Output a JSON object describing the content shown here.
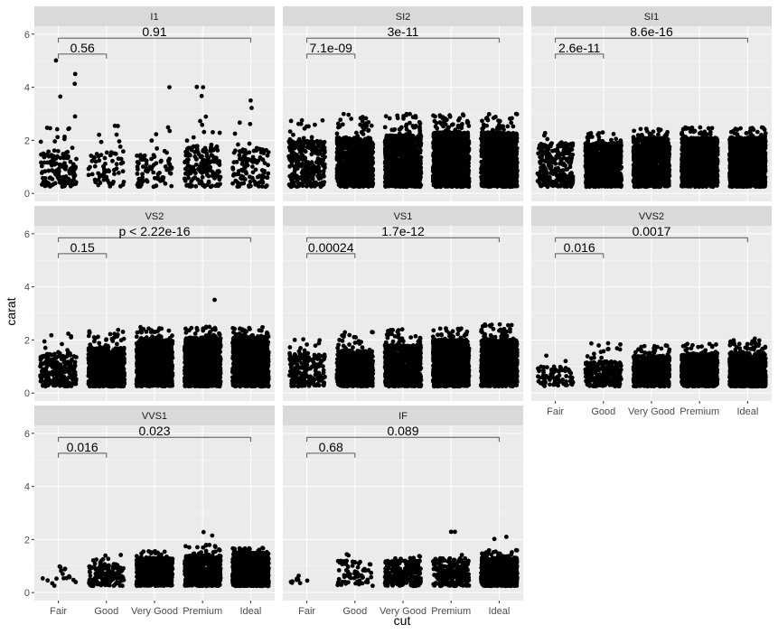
{
  "chart_data": {
    "type": "scatter",
    "subtype": "faceted-jitter-strip",
    "facet_variable": "clarity",
    "xlabel": "cut",
    "ylabel": "carat",
    "categories": [
      "Fair",
      "Good",
      "Very Good",
      "Premium",
      "Ideal"
    ],
    "ylim": [
      0,
      6
    ],
    "yticks": [
      "0",
      "2",
      "4",
      "6"
    ],
    "grid": true,
    "legend": "none",
    "colors": {
      "panel_bg": "#ebebeb",
      "strip_bg": "#d9d9d9",
      "grid": "#ffffff",
      "points": "#000000",
      "bracket": "#595959"
    },
    "panels": [
      {
        "label": "I1",
        "row": 0,
        "col": 0,
        "short_bracket": {
          "from": "Fair",
          "to": "Good",
          "y": 5.25,
          "label": "0.56"
        },
        "long_bracket": {
          "from": "Fair",
          "to": "Ideal",
          "y": 5.85,
          "label": "0.91"
        },
        "groups": [
          {
            "cat": "Fair",
            "n": 150,
            "core_max": 1.6,
            "extent": 3.0
          },
          {
            "cat": "Good",
            "n": 70,
            "core_max": 1.6,
            "extent": 2.8
          },
          {
            "cat": "Very Good",
            "n": 80,
            "core_max": 1.6,
            "extent": 2.9
          },
          {
            "cat": "Premium",
            "n": 180,
            "core_max": 1.8,
            "extent": 3.0
          },
          {
            "cat": "Ideal",
            "n": 120,
            "core_max": 1.7,
            "extent": 2.8
          }
        ],
        "outliers": [
          {
            "cat": "Fair",
            "dx": -0.05,
            "y": 5.01
          },
          {
            "cat": "Fair",
            "dx": 0.35,
            "y": 4.5
          },
          {
            "cat": "Fair",
            "dx": 0.34,
            "y": 4.13
          },
          {
            "cat": "Fair",
            "dx": 0.04,
            "y": 3.65
          },
          {
            "cat": "Very Good",
            "dx": 0.31,
            "y": 4.0
          },
          {
            "cat": "Premium",
            "dx": -0.12,
            "y": 4.01
          },
          {
            "cat": "Premium",
            "dx": 0.01,
            "y": 4.0
          },
          {
            "cat": "Premium",
            "dx": -0.02,
            "y": 3.67
          },
          {
            "cat": "Ideal",
            "dx": 0.0,
            "y": 3.5
          },
          {
            "cat": "Ideal",
            "dx": 0.02,
            "y": 3.22
          }
        ]
      },
      {
        "label": "SI2",
        "row": 0,
        "col": 1,
        "short_bracket": {
          "from": "Fair",
          "to": "Good",
          "y": 5.25,
          "label": "7.1e-09"
        },
        "long_bracket": {
          "from": "Fair",
          "to": "Ideal",
          "y": 5.85,
          "label": "3e-11"
        },
        "groups": [
          {
            "cat": "Fair",
            "n": 300,
            "core_max": 2.0,
            "extent": 3.0
          },
          {
            "cat": "Good",
            "n": 900,
            "core_max": 2.1,
            "extent": 3.0
          },
          {
            "cat": "Very Good",
            "n": 1100,
            "core_max": 2.2,
            "extent": 3.0
          },
          {
            "cat": "Premium",
            "n": 1300,
            "core_max": 2.3,
            "extent": 3.0
          },
          {
            "cat": "Ideal",
            "n": 1200,
            "core_max": 2.3,
            "extent": 3.0
          }
        ],
        "outliers": []
      },
      {
        "label": "SI1",
        "row": 0,
        "col": 2,
        "short_bracket": {
          "from": "Fair",
          "to": "Good",
          "y": 5.25,
          "label": "2.6e-11"
        },
        "long_bracket": {
          "from": "Fair",
          "to": "Ideal",
          "y": 5.85,
          "label": "8.6e-16"
        },
        "groups": [
          {
            "cat": "Fair",
            "n": 260,
            "core_max": 1.9,
            "extent": 2.3
          },
          {
            "cat": "Good",
            "n": 900,
            "core_max": 1.9,
            "extent": 2.3
          },
          {
            "cat": "Very Good",
            "n": 1100,
            "core_max": 2.1,
            "extent": 2.5
          },
          {
            "cat": "Premium",
            "n": 1300,
            "core_max": 2.1,
            "extent": 2.5
          },
          {
            "cat": "Ideal",
            "n": 1300,
            "core_max": 2.1,
            "extent": 2.5
          }
        ],
        "outliers": []
      },
      {
        "label": "VS2",
        "row": 1,
        "col": 0,
        "short_bracket": {
          "from": "Fair",
          "to": "Good",
          "y": 5.25,
          "label": "0.15"
        },
        "long_bracket": {
          "from": "Fair",
          "to": "Ideal",
          "y": 5.85,
          "label": "p < 2.22e-16"
        },
        "groups": [
          {
            "cat": "Fair",
            "n": 250,
            "core_max": 1.5,
            "extent": 2.3
          },
          {
            "cat": "Good",
            "n": 800,
            "core_max": 1.7,
            "extent": 2.4
          },
          {
            "cat": "Very Good",
            "n": 1100,
            "core_max": 2.0,
            "extent": 2.5
          },
          {
            "cat": "Premium",
            "n": 1300,
            "core_max": 2.1,
            "extent": 2.5
          },
          {
            "cat": "Ideal",
            "n": 1300,
            "core_max": 2.1,
            "extent": 2.5
          }
        ],
        "outliers": [
          {
            "cat": "Premium",
            "dx": 0.25,
            "y": 3.51
          }
        ]
      },
      {
        "label": "VS1",
        "row": 1,
        "col": 1,
        "short_bracket": {
          "from": "Fair",
          "to": "Good",
          "y": 5.25,
          "label": "0.00024"
        },
        "long_bracket": {
          "from": "Fair",
          "to": "Ideal",
          "y": 5.85,
          "label": "1.7e-12"
        },
        "groups": [
          {
            "cat": "Fair",
            "n": 200,
            "core_max": 1.5,
            "extent": 2.1
          },
          {
            "cat": "Good",
            "n": 700,
            "core_max": 1.6,
            "extent": 2.3
          },
          {
            "cat": "Very Good",
            "n": 1000,
            "core_max": 1.8,
            "extent": 2.4
          },
          {
            "cat": "Premium",
            "n": 1200,
            "core_max": 2.0,
            "extent": 2.5
          },
          {
            "cat": "Ideal",
            "n": 1200,
            "core_max": 2.0,
            "extent": 2.6
          }
        ],
        "outliers": []
      },
      {
        "label": "VVS2",
        "row": 1,
        "col": 2,
        "short_bracket": {
          "from": "Fair",
          "to": "Good",
          "y": 5.25,
          "label": "0.016"
        },
        "long_bracket": {
          "from": "Fair",
          "to": "Ideal",
          "y": 5.85,
          "label": "0.0017"
        },
        "groups": [
          {
            "cat": "Fair",
            "n": 80,
            "core_max": 1.0,
            "extent": 1.5
          },
          {
            "cat": "Good",
            "n": 300,
            "core_max": 1.2,
            "extent": 1.9
          },
          {
            "cat": "Very Good",
            "n": 700,
            "core_max": 1.4,
            "extent": 1.8
          },
          {
            "cat": "Premium",
            "n": 700,
            "core_max": 1.5,
            "extent": 1.9
          },
          {
            "cat": "Ideal",
            "n": 1100,
            "core_max": 1.5,
            "extent": 2.0
          }
        ],
        "outliers": [
          {
            "cat": "Ideal",
            "dx": 0.15,
            "y": 2.05
          }
        ]
      },
      {
        "label": "VVS1",
        "row": 2,
        "col": 0,
        "short_bracket": {
          "from": "Fair",
          "to": "Good",
          "y": 5.25,
          "label": "0.016"
        },
        "long_bracket": {
          "from": "Fair",
          "to": "Ideal",
          "y": 5.85,
          "label": "0.023"
        },
        "groups": [
          {
            "cat": "Fair",
            "n": 17,
            "core_max": 1.0,
            "extent": 1.3
          },
          {
            "cat": "Good",
            "n": 180,
            "core_max": 1.1,
            "extent": 1.5
          },
          {
            "cat": "Very Good",
            "n": 700,
            "core_max": 1.3,
            "extent": 1.6
          },
          {
            "cat": "Premium",
            "n": 600,
            "core_max": 1.4,
            "extent": 1.8
          },
          {
            "cat": "Ideal",
            "n": 1200,
            "core_max": 1.5,
            "extent": 1.7
          }
        ],
        "outliers": [
          {
            "cat": "Premium",
            "dx": 0.02,
            "y": 2.28
          },
          {
            "cat": "Premium",
            "dx": 0.2,
            "y": 2.15
          }
        ]
      },
      {
        "label": "IF",
        "row": 2,
        "col": 1,
        "short_bracket": {
          "from": "Fair",
          "to": "Good",
          "y": 5.25,
          "label": "0.68"
        },
        "long_bracket": {
          "from": "Fair",
          "to": "Ideal",
          "y": 5.85,
          "label": "0.089"
        },
        "groups": [
          {
            "cat": "Fair",
            "n": 9,
            "core_max": 0.7,
            "extent": 0.7
          },
          {
            "cat": "Good",
            "n": 70,
            "core_max": 1.2,
            "extent": 1.5
          },
          {
            "cat": "Very Good",
            "n": 270,
            "core_max": 1.2,
            "extent": 1.5
          },
          {
            "cat": "Premium",
            "n": 230,
            "core_max": 1.3,
            "extent": 1.5
          },
          {
            "cat": "Ideal",
            "n": 1200,
            "core_max": 1.3,
            "extent": 1.6
          }
        ],
        "outliers": [
          {
            "cat": "Premium",
            "dx": 0.0,
            "y": 2.29
          },
          {
            "cat": "Premium",
            "dx": 0.08,
            "y": 2.29
          },
          {
            "cat": "Ideal",
            "dx": 0.15,
            "y": 2.1
          },
          {
            "cat": "Ideal",
            "dx": -0.1,
            "y": 2.02
          },
          {
            "cat": "Very Good",
            "dx": 0.0,
            "y": 0.33
          }
        ]
      }
    ]
  }
}
